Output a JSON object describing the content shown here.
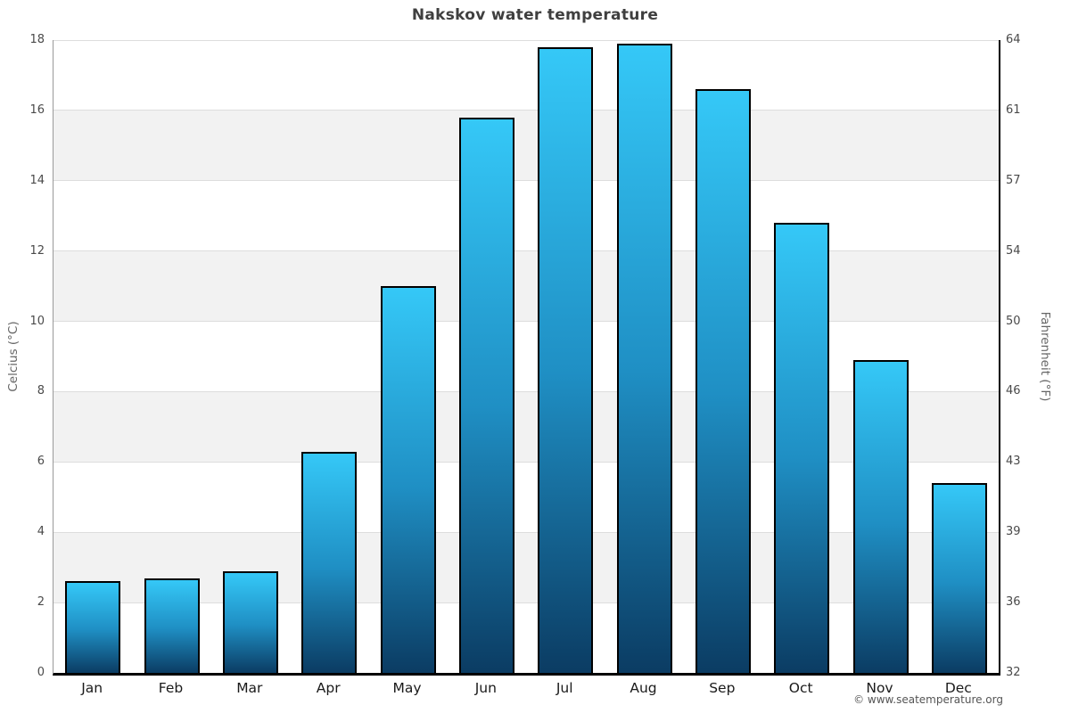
{
  "chart_data": {
    "type": "bar",
    "title": "Nakskov water temperature",
    "categories": [
      "Jan",
      "Feb",
      "Mar",
      "Apr",
      "May",
      "Jun",
      "Jul",
      "Aug",
      "Sep",
      "Oct",
      "Nov",
      "Dec"
    ],
    "values": [
      2.6,
      2.7,
      2.9,
      6.3,
      11.0,
      15.8,
      17.8,
      17.9,
      16.6,
      12.8,
      8.9,
      5.4
    ],
    "ylabel_left": "Celcius (°C)",
    "ylabel_right": "Fahrenheit (°F)",
    "yticks_celsius": [
      0,
      2,
      4,
      6,
      8,
      10,
      12,
      14,
      16,
      18
    ],
    "ytick_labels_fahrenheit": [
      "32",
      "36",
      "39",
      "43",
      "46",
      "50",
      "54",
      "57",
      "61",
      "64"
    ],
    "ylim": [
      0,
      18
    ],
    "grid": true,
    "legend": "none",
    "colors": {
      "bar_gradient_top": "#35c8f7",
      "bar_gradient_mid": "#1f8fc4",
      "bar_gradient_bottom": "#0b3c63",
      "bar_border": "#000000",
      "band_gray": "#f2f2f2",
      "gridline": "#dddddd"
    }
  },
  "footer": {
    "text": "© www.seatemperature.org"
  }
}
